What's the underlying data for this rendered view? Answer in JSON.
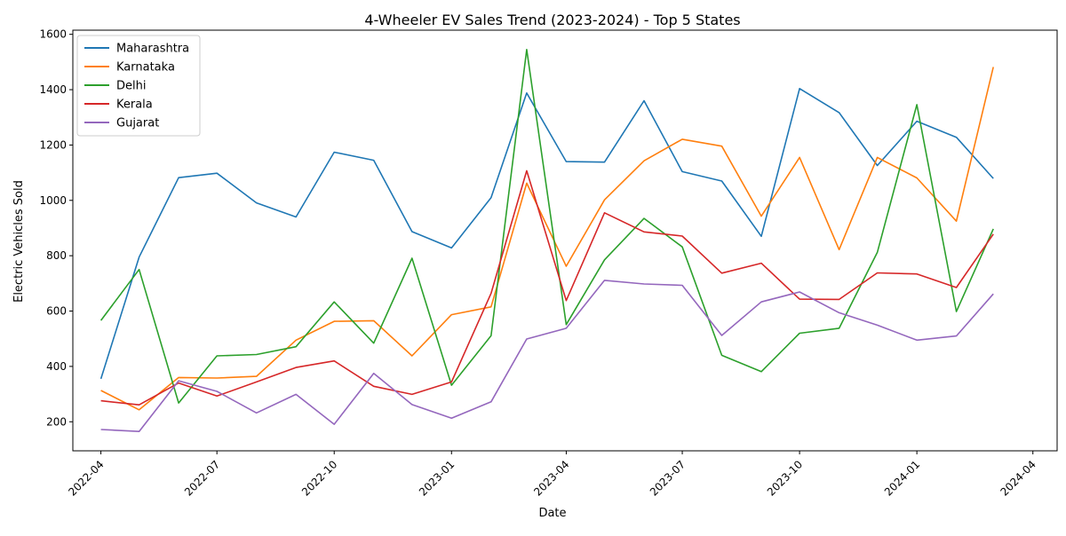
{
  "chart_data": {
    "type": "line",
    "title": "4-Wheeler EV Sales Trend (2023-2024) - Top 5 States",
    "xlabel": "Date",
    "ylabel": "Electric Vehicles Sold",
    "x": [
      "2022-04",
      "2022-05",
      "2022-06",
      "2022-07",
      "2022-08",
      "2022-09",
      "2022-10",
      "2022-11",
      "2022-12",
      "2023-01",
      "2023-02",
      "2023-03",
      "2023-04",
      "2023-05",
      "2023-06",
      "2023-07",
      "2023-08",
      "2023-09",
      "2023-10",
      "2023-11",
      "2023-12",
      "2024-01",
      "2024-02",
      "2024-03"
    ],
    "xticks": [
      "2022-04",
      "2022-07",
      "2022-10",
      "2023-01",
      "2023-04",
      "2023-07",
      "2023-10",
      "2024-01",
      "2024-04"
    ],
    "yticks": [
      200,
      400,
      600,
      800,
      1000,
      1200,
      1400,
      1600
    ],
    "ylim": [
      95,
      1615
    ],
    "xlim": [
      "2022-03-10",
      "2024-04-20"
    ],
    "legend_position": "upper-left",
    "grid": false,
    "series": [
      {
        "name": "Maharashtra",
        "color": "#1f77b4",
        "values": [
          355,
          795,
          1082,
          1098,
          991,
          940,
          1174,
          1145,
          887,
          828,
          1010,
          1388,
          1140,
          1138,
          1360,
          1104,
          1070,
          870,
          1404,
          1317,
          1126,
          1286,
          1228,
          1079
        ]
      },
      {
        "name": "Karnataka",
        "color": "#ff7f0e",
        "values": [
          313,
          243,
          360,
          358,
          364,
          495,
          563,
          565,
          438,
          587,
          615,
          1062,
          762,
          1002,
          1143,
          1221,
          1196,
          943,
          1155,
          822,
          1155,
          1081,
          925,
          1482
        ]
      },
      {
        "name": "Delhi",
        "color": "#2ca02c",
        "values": [
          566,
          750,
          268,
          438,
          443,
          471,
          633,
          484,
          791,
          332,
          511,
          1545,
          551,
          785,
          935,
          832,
          440,
          381,
          520,
          538,
          812,
          1346,
          598,
          897
        ]
      },
      {
        "name": "Kerala",
        "color": "#d62728",
        "values": [
          276,
          261,
          340,
          293,
          344,
          396,
          420,
          328,
          299,
          344,
          664,
          1107,
          638,
          955,
          886,
          871,
          737,
          773,
          643,
          642,
          738,
          734,
          685,
          878
        ]
      },
      {
        "name": "Gujarat",
        "color": "#9467bd",
        "values": [
          172,
          165,
          348,
          310,
          232,
          299,
          191,
          375,
          262,
          213,
          272,
          499,
          538,
          711,
          698,
          693,
          512,
          633,
          669,
          594,
          549,
          495,
          510,
          662
        ]
      }
    ]
  }
}
